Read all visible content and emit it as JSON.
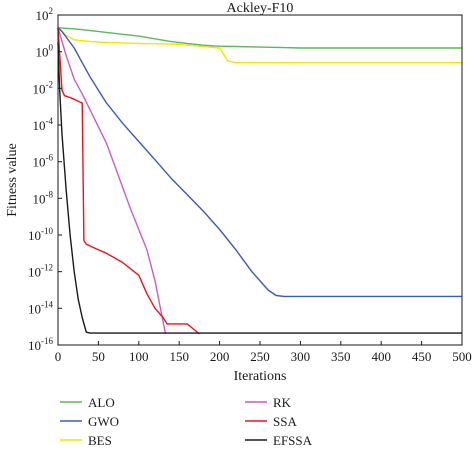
{
  "chart_data": {
    "type": "line",
    "title": "Ackley-F10",
    "xlabel": "Iterations",
    "ylabel": "Fitness value",
    "xlim": [
      0,
      500
    ],
    "ylim_log10": [
      -16,
      2
    ],
    "y_scale": "log",
    "grid": false,
    "x_ticks": [
      0,
      50,
      100,
      150,
      200,
      250,
      300,
      350,
      400,
      450,
      500
    ],
    "y_tick_exponents": [
      2,
      0,
      -2,
      -4,
      -6,
      -8,
      -10,
      -12,
      -14,
      -16
    ],
    "legend_position": "bottom",
    "series": [
      {
        "name": "ALO",
        "color": "#5cb85c",
        "x": [
          0,
          20,
          40,
          60,
          80,
          100,
          120,
          140,
          160,
          180,
          200,
          220,
          250,
          280,
          300,
          350,
          400,
          450,
          500
        ],
        "log10_y": [
          1.3,
          1.25,
          1.15,
          1.05,
          0.95,
          0.85,
          0.7,
          0.55,
          0.45,
          0.35,
          0.3,
          0.28,
          0.25,
          0.22,
          0.2,
          0.2,
          0.2,
          0.2,
          0.2
        ]
      },
      {
        "name": "GWO",
        "color": "#3a5bb5",
        "x": [
          0,
          5,
          10,
          20,
          30,
          40,
          50,
          60,
          80,
          100,
          120,
          140,
          160,
          180,
          200,
          220,
          240,
          260,
          270,
          280,
          300,
          350,
          400,
          450,
          500
        ],
        "log10_y": [
          1.3,
          1.1,
          0.8,
          0.2,
          -0.6,
          -1.4,
          -2.1,
          -2.8,
          -3.9,
          -4.9,
          -5.9,
          -6.9,
          -7.8,
          -8.7,
          -9.7,
          -10.8,
          -12.0,
          -13.0,
          -13.3,
          -13.35,
          -13.35,
          -13.35,
          -13.35,
          -13.35,
          -13.35
        ]
      },
      {
        "name": "BES",
        "color": "#f2e600",
        "x": [
          0,
          10,
          20,
          40,
          60,
          80,
          100,
          150,
          200,
          210,
          220,
          300,
          400,
          500
        ],
        "log10_y": [
          1.3,
          0.9,
          0.65,
          0.55,
          0.5,
          0.48,
          0.45,
          0.4,
          0.2,
          -0.5,
          -0.6,
          -0.6,
          -0.6,
          -0.6
        ]
      },
      {
        "name": "RK",
        "color": "#c45fc4",
        "x": [
          0,
          10,
          20,
          30,
          40,
          50,
          60,
          70,
          80,
          90,
          100,
          110,
          120,
          125,
          130,
          133
        ],
        "log10_y": [
          1.3,
          -0.2,
          -1.5,
          -2.3,
          -3.2,
          -4.1,
          -5.0,
          -6.2,
          -7.4,
          -8.6,
          -9.7,
          -10.8,
          -12.5,
          -13.6,
          -14.7,
          -15.4
        ]
      },
      {
        "name": "SSA",
        "color": "#e8141e",
        "x": [
          0,
          5,
          8,
          15,
          20,
          25,
          30,
          32,
          35,
          50,
          60,
          80,
          100,
          110,
          120,
          130,
          135,
          160,
          175
        ],
        "log10_y": [
          1.3,
          -2.1,
          -2.4,
          -2.5,
          -2.6,
          -2.7,
          -2.8,
          -10.3,
          -10.5,
          -10.8,
          -11.0,
          -11.5,
          -12.2,
          -13.2,
          -14.0,
          -14.5,
          -14.85,
          -14.85,
          -15.4
        ]
      },
      {
        "name": "EFSSA",
        "color": "#1a1a1a",
        "x": [
          0,
          2,
          5,
          10,
          15,
          20,
          25,
          30,
          35,
          40,
          100,
          200,
          300,
          400,
          500
        ],
        "log10_y": [
          0.5,
          -2.0,
          -4.5,
          -7.5,
          -10.0,
          -12.0,
          -13.5,
          -14.5,
          -15.3,
          -15.35,
          -15.35,
          -15.35,
          -15.35,
          -15.35,
          -15.35
        ]
      }
    ]
  }
}
